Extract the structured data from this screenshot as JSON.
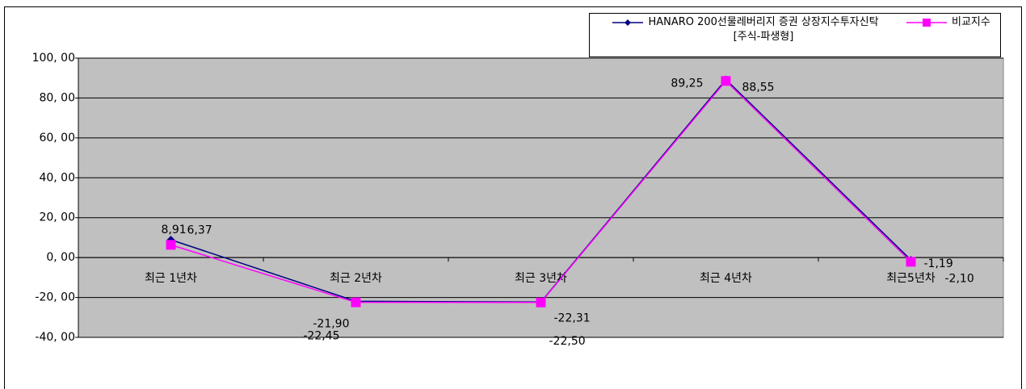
{
  "chart_data": {
    "type": "line",
    "categories": [
      "최근 1년차",
      "최근 2년차",
      "최근 3년차",
      "최근 4년차",
      "최근5년차"
    ],
    "series": [
      {
        "name": "HANARO 200선물레버리지 증권 상장지수투자신탁[주식-파생형]",
        "color": "#000080",
        "marker": "diamond",
        "values": [
          8.91,
          -21.9,
          -22.31,
          89.25,
          -1.19
        ],
        "value_labels": [
          "8,91",
          "-21,90",
          "-22,31",
          "89,25",
          "-1,19"
        ]
      },
      {
        "name": "비교지수",
        "color": "#ff00ff",
        "marker": "square",
        "values": [
          6.37,
          -22.45,
          -22.5,
          88.55,
          -2.1
        ],
        "value_labels": [
          "6,37",
          "-22,45",
          "-22,50",
          "88,55",
          "-2,10"
        ]
      }
    ],
    "ylim": [
      -40,
      100
    ],
    "yticks": [
      {
        "value": -40,
        "label": "-40, 00"
      },
      {
        "value": -20,
        "label": "-20, 00"
      },
      {
        "value": 0,
        "label": "0, 00"
      },
      {
        "value": 20,
        "label": "20, 00"
      },
      {
        "value": 40,
        "label": "40, 00"
      },
      {
        "value": 60,
        "label": "60, 00"
      },
      {
        "value": 80,
        "label": "80, 00"
      },
      {
        "value": 100,
        "label": "100, 00"
      }
    ],
    "grid": true,
    "legend": "top-right"
  }
}
